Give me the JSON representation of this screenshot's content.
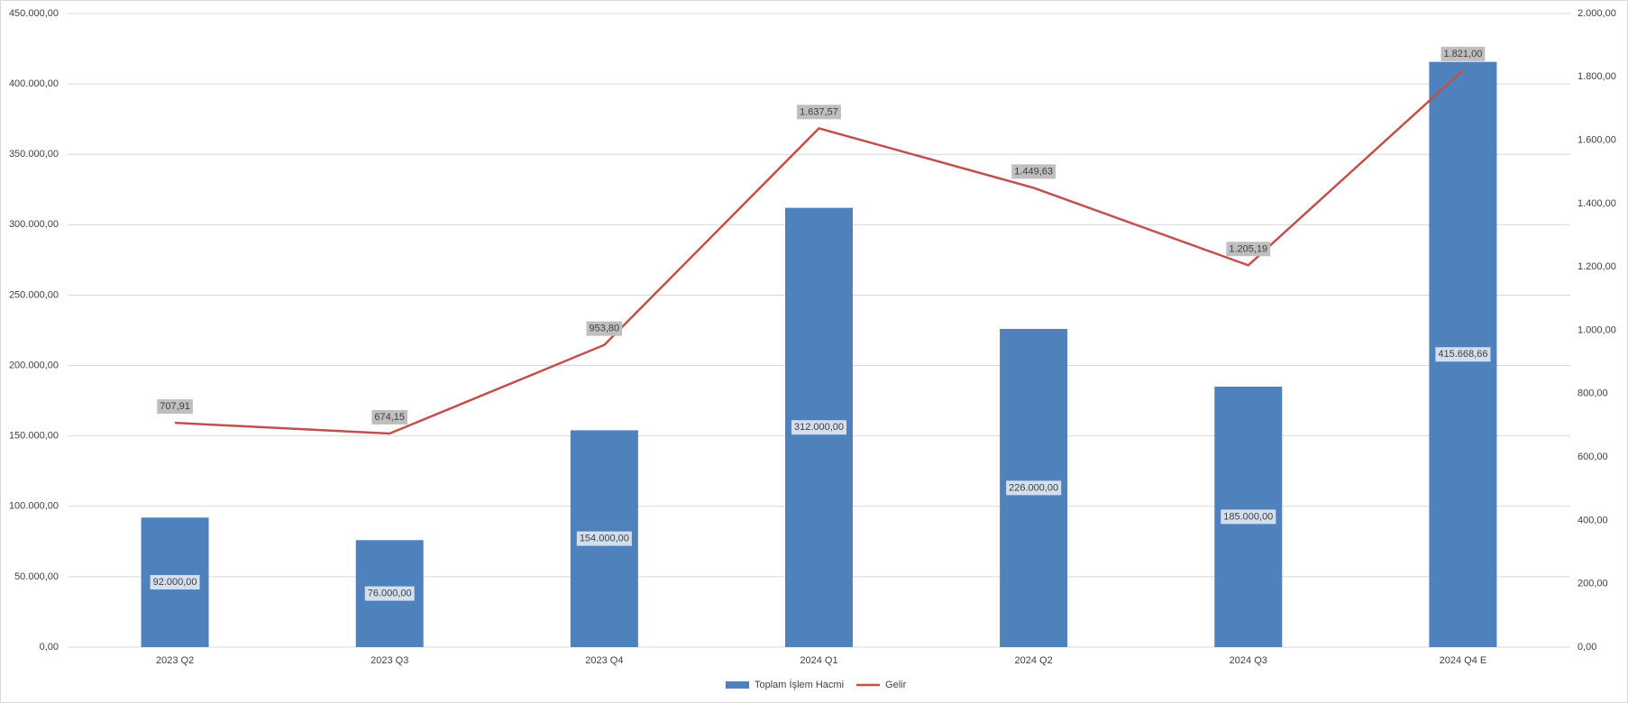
{
  "chart_data": {
    "type": "bar-line",
    "categories": [
      "2023 Q2",
      "2023 Q3",
      "2023 Q4",
      "2024 Q1",
      "2024 Q2",
      "2024 Q3",
      "2024 Q4 E"
    ],
    "series": [
      {
        "name": "Toplam İşlem Hacmi",
        "type": "bar",
        "color": "#4f81bd",
        "axis": "y",
        "values": [
          92000,
          76000,
          154000,
          312000,
          226000,
          185000,
          415668.66
        ],
        "value_labels": [
          "92.000,00",
          "76.000,00",
          "154.000,00",
          "312.000,00",
          "226.000,00",
          "185.000,00",
          "415.668,66"
        ]
      },
      {
        "name": "Gelir",
        "type": "line",
        "color": "#c0504d",
        "axis": "y2",
        "values": [
          707.91,
          674.15,
          953.8,
          1637.57,
          1449.63,
          1205.19,
          1821.0
        ],
        "value_labels": [
          "707,91",
          "674,15",
          "953,80",
          "1.637,57",
          "1.449,63",
          "1.205,19",
          "1.821,00"
        ]
      }
    ],
    "ylim": [
      0,
      450000
    ],
    "yticks": [
      {
        "value": 0,
        "label": "0,00"
      },
      {
        "value": 50000,
        "label": "50.000,00"
      },
      {
        "value": 100000,
        "label": "100.000,00"
      },
      {
        "value": 150000,
        "label": "150.000,00"
      },
      {
        "value": 200000,
        "label": "200.000,00"
      },
      {
        "value": 250000,
        "label": "250.000,00"
      },
      {
        "value": 300000,
        "label": "300.000,00"
      },
      {
        "value": 350000,
        "label": "350.000,00"
      },
      {
        "value": 400000,
        "label": "400.000,00"
      },
      {
        "value": 450000,
        "label": "450.000,00"
      }
    ],
    "y2lim": [
      0,
      2000
    ],
    "y2ticks": [
      {
        "value": 0,
        "label": "0,00"
      },
      {
        "value": 200,
        "label": "200,00"
      },
      {
        "value": 400,
        "label": "400,00"
      },
      {
        "value": 600,
        "label": "600,00"
      },
      {
        "value": 800,
        "label": "800,00"
      },
      {
        "value": 1000,
        "label": "1.000,00"
      },
      {
        "value": 1200,
        "label": "1.200,00"
      },
      {
        "value": 1400,
        "label": "1.400,00"
      },
      {
        "value": 1600,
        "label": "1.600,00"
      },
      {
        "value": 1800,
        "label": "1.800,00"
      },
      {
        "value": 2000,
        "label": "2.000,00"
      }
    ],
    "grid": true,
    "legend": "bottom"
  }
}
